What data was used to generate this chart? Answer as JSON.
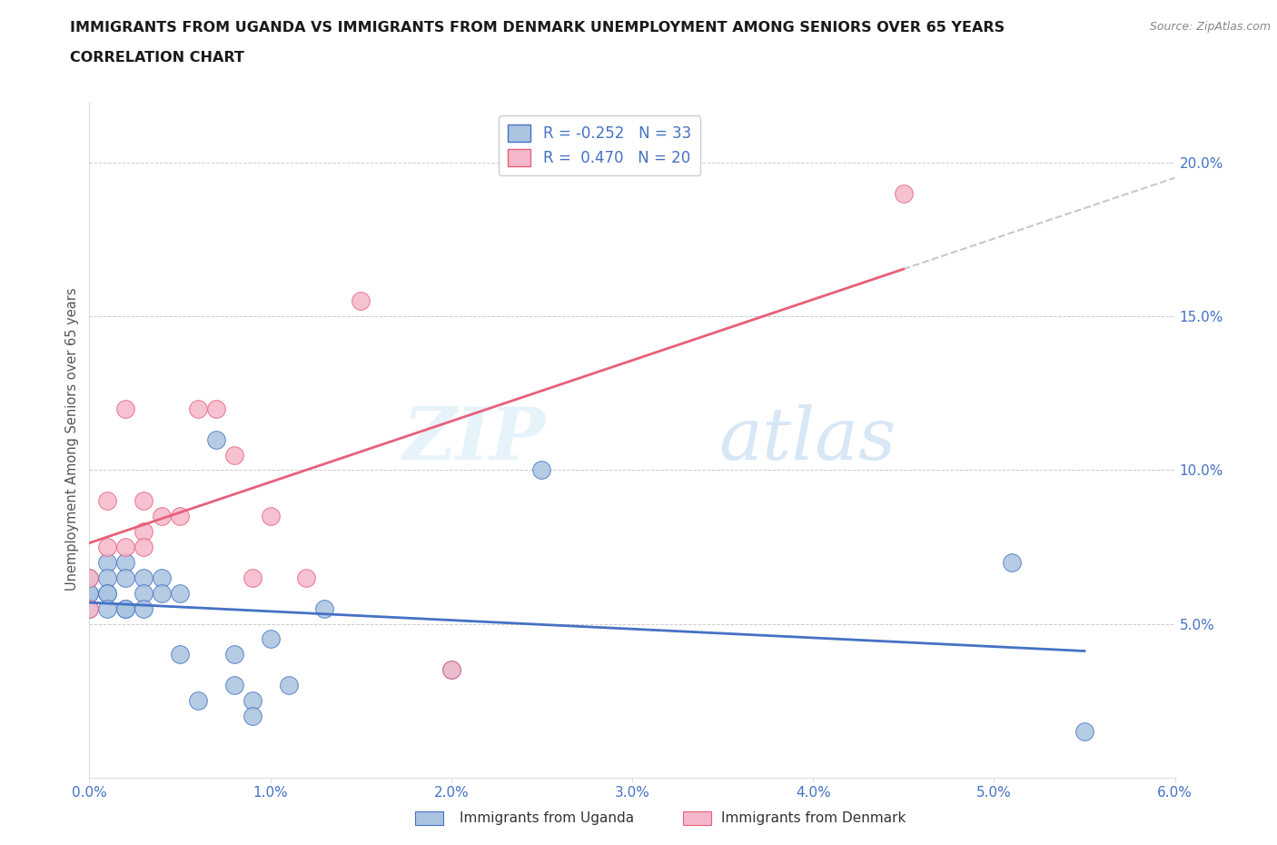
{
  "title_line1": "IMMIGRANTS FROM UGANDA VS IMMIGRANTS FROM DENMARK UNEMPLOYMENT AMONG SENIORS OVER 65 YEARS",
  "title_line2": "CORRELATION CHART",
  "source": "Source: ZipAtlas.com",
  "ylabel": "Unemployment Among Seniors over 65 years",
  "xlim": [
    0.0,
    0.06
  ],
  "ylim": [
    0.0,
    0.22
  ],
  "xticks": [
    0.0,
    0.01,
    0.02,
    0.03,
    0.04,
    0.05,
    0.06
  ],
  "xticklabels": [
    "0.0%",
    "1.0%",
    "2.0%",
    "3.0%",
    "4.0%",
    "5.0%",
    "6.0%"
  ],
  "yticks": [
    0.05,
    0.1,
    0.15,
    0.2
  ],
  "yticklabels": [
    "5.0%",
    "10.0%",
    "15.0%",
    "20.0%"
  ],
  "watermark_zip": "ZIP",
  "watermark_atlas": "atlas",
  "legend_R1": "-0.252",
  "legend_N1": "33",
  "legend_R2": "0.470",
  "legend_N2": "20",
  "color_uganda": "#aac4e0",
  "color_denmark": "#f5b8cb",
  "line_color_uganda": "#4472C4",
  "line_color_denmark": "#e8607a",
  "trendline_dash_color": "#c8c8c8",
  "uganda_x": [
    0.0,
    0.0,
    0.0,
    0.0,
    0.001,
    0.001,
    0.001,
    0.001,
    0.001,
    0.002,
    0.002,
    0.002,
    0.002,
    0.003,
    0.003,
    0.003,
    0.004,
    0.004,
    0.005,
    0.005,
    0.006,
    0.007,
    0.008,
    0.008,
    0.009,
    0.009,
    0.01,
    0.011,
    0.013,
    0.02,
    0.025,
    0.051,
    0.055
  ],
  "uganda_y": [
    0.06,
    0.065,
    0.055,
    0.06,
    0.07,
    0.065,
    0.06,
    0.06,
    0.055,
    0.07,
    0.065,
    0.055,
    0.055,
    0.065,
    0.06,
    0.055,
    0.065,
    0.06,
    0.06,
    0.04,
    0.025,
    0.11,
    0.04,
    0.03,
    0.025,
    0.02,
    0.045,
    0.03,
    0.055,
    0.035,
    0.1,
    0.07,
    0.015
  ],
  "denmark_x": [
    0.0,
    0.0,
    0.001,
    0.001,
    0.002,
    0.002,
    0.003,
    0.003,
    0.003,
    0.004,
    0.005,
    0.006,
    0.007,
    0.008,
    0.009,
    0.01,
    0.012,
    0.015,
    0.02,
    0.045
  ],
  "denmark_y": [
    0.065,
    0.055,
    0.09,
    0.075,
    0.12,
    0.075,
    0.09,
    0.08,
    0.075,
    0.085,
    0.085,
    0.12,
    0.12,
    0.105,
    0.065,
    0.085,
    0.065,
    0.155,
    0.035,
    0.19
  ]
}
